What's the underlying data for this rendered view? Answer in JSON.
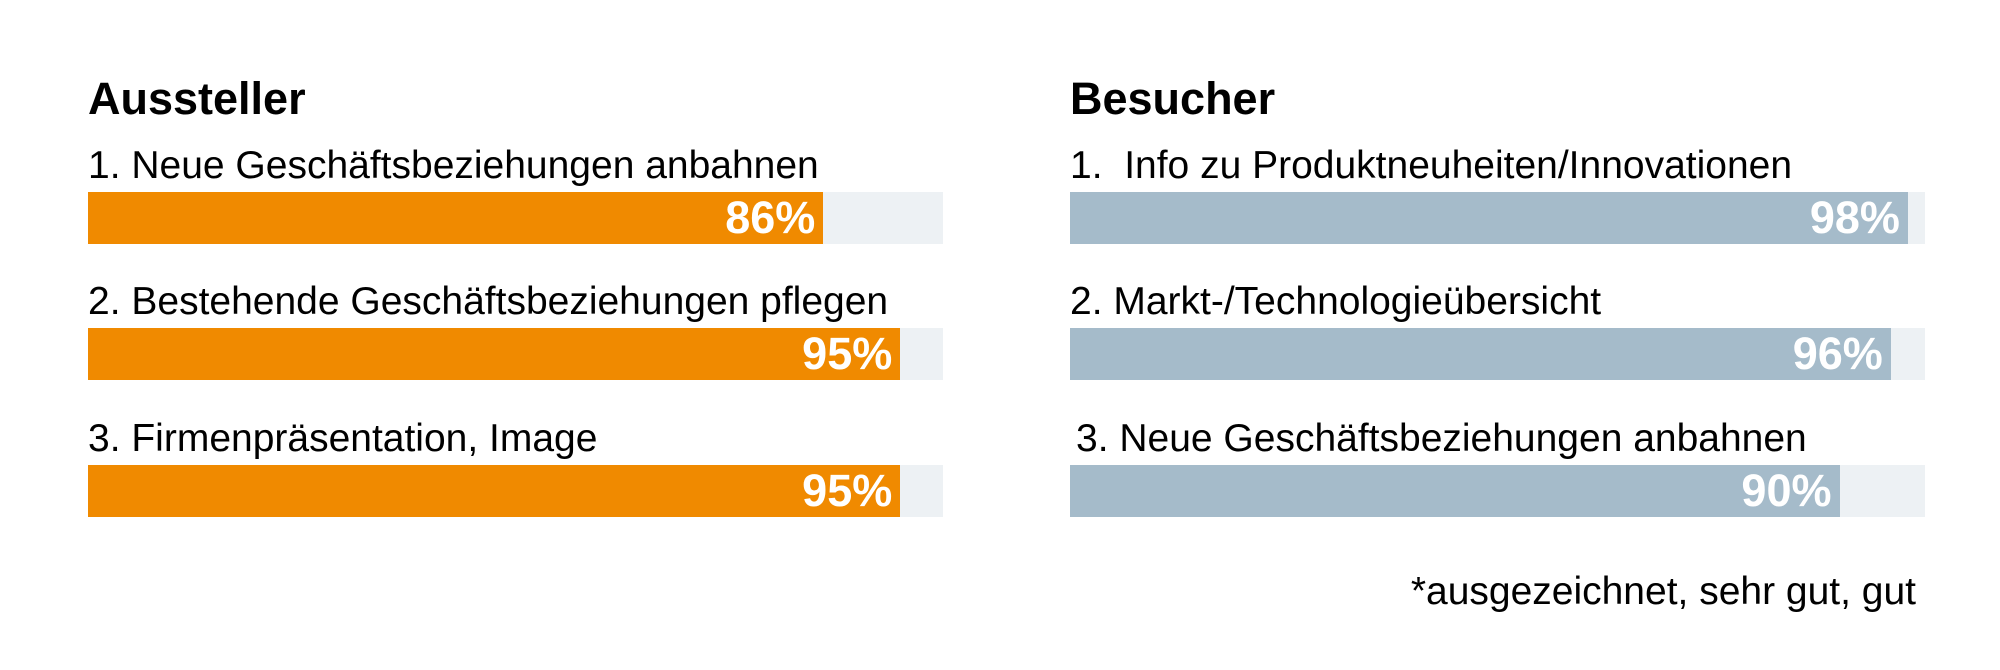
{
  "chart_data": [
    {
      "type": "bar",
      "title": "Aussteller",
      "categories": [
        "1. Neue Geschäftsbeziehungen anbahnen",
        "2. Bestehende Geschäftsbeziehungen pflegen",
        "3. Firmenpräsentation, Image"
      ],
      "values": [
        86,
        95,
        95
      ],
      "value_labels": [
        "86%",
        "95%",
        "95%"
      ],
      "unit": "%",
      "ylim": [
        0,
        100
      ],
      "color": "#f08a00",
      "track_color": "#edf1f4",
      "orientation": "horizontal",
      "grid": false
    },
    {
      "type": "bar",
      "title": "Besucher",
      "categories": [
        "1.  Info zu Produktneuheiten/Innovationen",
        "2. Markt-/Technologieübersicht",
        "3. Neue Geschäftsbeziehungen anbahnen"
      ],
      "values": [
        98,
        96,
        90
      ],
      "value_labels": [
        "98%",
        "96%",
        "90%"
      ],
      "unit": "%",
      "ylim": [
        0,
        100
      ],
      "color": "#a5bbca",
      "track_color": "#edf1f4",
      "orientation": "horizontal",
      "grid": false
    }
  ],
  "footnote": "*ausgezeichnet, sehr gut, gut"
}
